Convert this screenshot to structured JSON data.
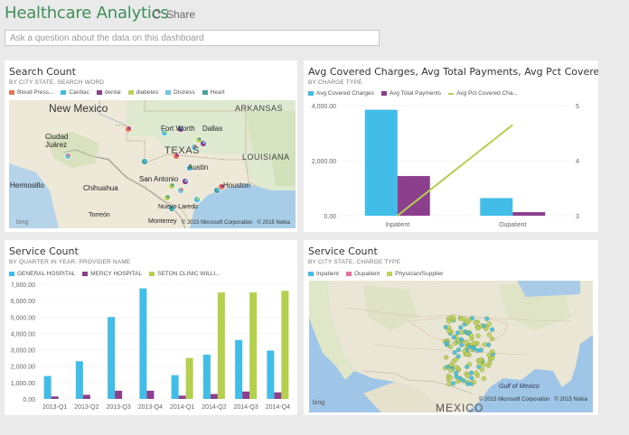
{
  "header": {
    "title": "Healthcare Analytics",
    "share_label": "Share",
    "qa_placeholder": "Ask a question about the data on this dashboard"
  },
  "colors": {
    "accent": "#3f8f5a",
    "cyan": "#41bde8",
    "purple": "#8c3f8c",
    "lime": "#b5cf4f",
    "salmon": "#e8745a",
    "yellowgreen": "#c2d15d",
    "teal": "#4aa39b",
    "pink": "#e96e9e"
  },
  "tiles": {
    "search_count": {
      "title": "Search Count",
      "subtitle": "BY CITY STATE, SEARCH WORD",
      "legend": [
        "Blood Press...",
        "Cardiac",
        "dental",
        "diabetes",
        "Distress",
        "Heart"
      ],
      "legend_colors": [
        "#e8745a",
        "#41bde8",
        "#8c3f8c",
        "#c2d15d",
        "#6ec9e2",
        "#4aa39b"
      ],
      "map_labels": {
        "new_mexico": "New Mexico",
        "arkansas": "ARKANSAS",
        "texas": "TEXAS",
        "louisiana": "LOUISIANA",
        "ciudad_juarez": "Ciudad\nJuárez",
        "chihuahua": "Chihuahua",
        "hermosillo": "Hermosillo",
        "fort_worth": "Fort Worth",
        "dallas": "Dallas",
        "austin": "Austin",
        "san_antonio": "San Antonio",
        "houston": "Houston",
        "nuevo_laredo": "Nuevo Laredo",
        "torreon": "Torreón",
        "monterrey": "Monterrey"
      },
      "copyright": "© 2015 Microsoft Corporation   © 2015 Nokia",
      "bing": "bing"
    },
    "avg_charges": {
      "title": "Avg Covered Charges, Avg Total Payments, Avg Pct Covered Char...",
      "subtitle": "BY CHARGE TYPE",
      "legend": [
        "Avg Covered Charges",
        "Avg Total Payments",
        "Avg Pct Covered Cha..."
      ]
    },
    "service_quarter": {
      "title": "Service Count",
      "subtitle": "BY QUARTER IN YEAR, PROVIDER NAME",
      "legend": [
        "GENERAL HOSPITAL",
        "MERCY HOSPITAL",
        "SETON CLINIC WILLI..."
      ]
    },
    "service_city": {
      "title": "Service Count",
      "subtitle": "BY CITY STATE, CHARGE TYPE",
      "legend": [
        "Inpatient",
        "Oupatient",
        "Physician/Supplier"
      ],
      "legend_colors": [
        "#41bde8",
        "#e96e9e",
        "#c2d15d"
      ],
      "map_labels": {
        "mexico": "MEXICO",
        "gulf": "Gulf of Mexico"
      },
      "copyright": "© 2015 Microsoft Corporation   © 2015 Nokia",
      "bing": "bing"
    }
  },
  "chart_data": [
    {
      "type": "bar",
      "title": "Avg Covered Charges, Avg Total Payments, Avg Pct Covered Char...",
      "categories": [
        "Inpatient",
        "Oupatient"
      ],
      "series": [
        {
          "name": "Avg Covered Charges",
          "values": [
            3850,
            640
          ],
          "axis": "left",
          "color": "#41bde8"
        },
        {
          "name": "Avg Total Payments",
          "values": [
            1440,
            130
          ],
          "axis": "left",
          "color": "#8c3f8c"
        },
        {
          "name": "Avg Pct Covered Cha...",
          "values": [
            3.0,
            4.65
          ],
          "axis": "right",
          "kind": "line",
          "color": "#b5cf4f"
        }
      ],
      "ylim": [
        0,
        4000
      ],
      "y2lim": [
        3,
        5
      ],
      "yticks": [
        "4,000.00",
        "2,000.00",
        "0.00"
      ],
      "y2ticks": [
        "5",
        "4",
        "3"
      ]
    },
    {
      "type": "bar",
      "title": "Service Count",
      "categories": [
        "2013-Q1",
        "2013-Q2",
        "2013-Q3",
        "2013-Q4",
        "2014-Q1",
        "2014-Q2",
        "2014-Q3",
        "2014-Q4"
      ],
      "series": [
        {
          "name": "GENERAL HOSPITAL",
          "values": [
            1400,
            2300,
            5000,
            6750,
            1450,
            2700,
            3600,
            2950
          ],
          "color": "#41bde8"
        },
        {
          "name": "MERCY HOSPITAL",
          "values": [
            150,
            250,
            500,
            500,
            200,
            300,
            450,
            400
          ],
          "color": "#8c3f8c"
        },
        {
          "name": "SETON CLINIC WILLI...",
          "values": [
            0,
            0,
            0,
            0,
            2500,
            6500,
            6500,
            6600
          ],
          "color": "#b5cf4f"
        }
      ],
      "ylim": [
        0,
        7000
      ],
      "yticks": [
        "7,000.00",
        "6,000.00",
        "5,000.00",
        "4,000.00",
        "3,000.00",
        "2,000.00",
        "1,000.00",
        "0.00"
      ]
    }
  ]
}
